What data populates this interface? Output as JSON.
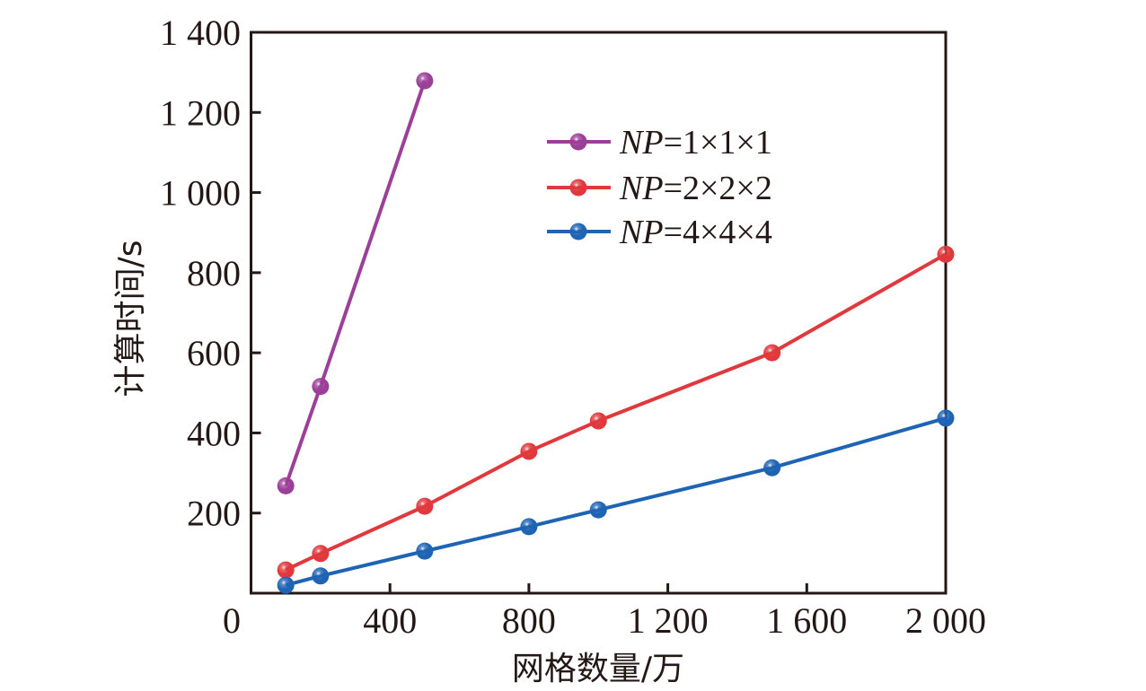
{
  "chart_data": {
    "type": "line",
    "title": "",
    "xlabel": "网格数量/万",
    "ylabel": "计算时间/s",
    "xlim": [
      0,
      2000
    ],
    "ylim": [
      0,
      1400
    ],
    "grid": false,
    "legend_position": "top-center",
    "x_ticks": [
      {
        "value": 0,
        "label": "0"
      },
      {
        "value": 400,
        "label": "400"
      },
      {
        "value": 800,
        "label": "800"
      },
      {
        "value": 1200,
        "label": "1 200"
      },
      {
        "value": 1600,
        "label": "1 600"
      },
      {
        "value": 2000,
        "label": "2 000"
      }
    ],
    "y_ticks": [
      {
        "value": 200,
        "label": "200"
      },
      {
        "value": 400,
        "label": "400"
      },
      {
        "value": 600,
        "label": "600"
      },
      {
        "value": 800,
        "label": "800"
      },
      {
        "value": 1000,
        "label": "1 000"
      },
      {
        "value": 1200,
        "label": "1 200"
      },
      {
        "value": 1400,
        "label": "1 400"
      }
    ],
    "series": [
      {
        "name": "NP=1×1×1",
        "name_italic": "NP",
        "name_rest": "=1×1×1",
        "color": "#9b3f98",
        "x": [
          100,
          200,
          500
        ],
        "values": [
          268,
          516,
          1279
        ]
      },
      {
        "name": "NP=2×2×2",
        "name_italic": "NP",
        "name_rest": "=2×2×2",
        "color": "#e0383c",
        "x": [
          100,
          200,
          500,
          800,
          1000,
          1500,
          2000
        ],
        "values": [
          58,
          99,
          217,
          354,
          430,
          600,
          846
        ]
      },
      {
        "name": "NP=4×4×4",
        "name_italic": "NP",
        "name_rest": "=4×4×4",
        "color": "#1f64b4",
        "x": [
          100,
          200,
          500,
          800,
          1000,
          1500,
          2000
        ],
        "values": [
          20,
          43,
          105,
          166,
          208,
          313,
          437
        ]
      }
    ]
  }
}
